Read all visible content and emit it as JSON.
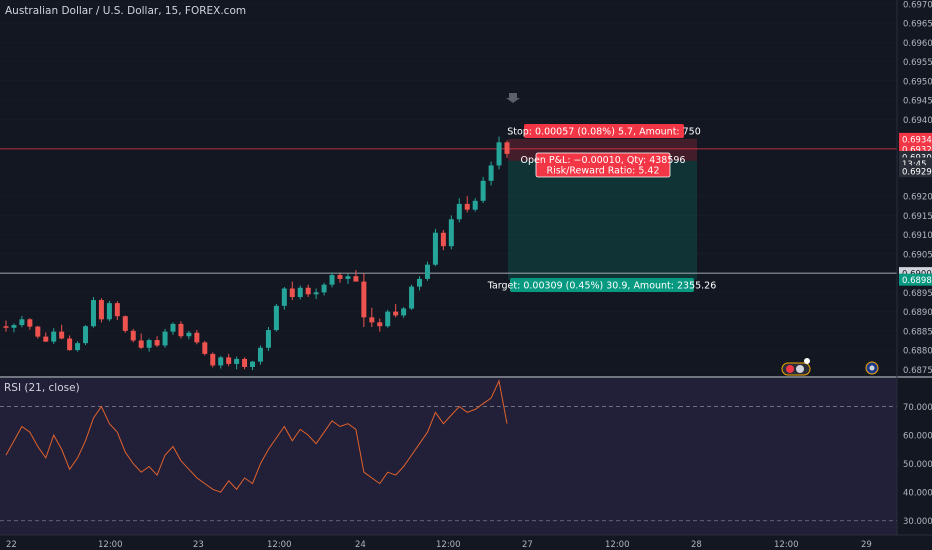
{
  "symbol_title": "Australian Dollar / U.S. Dollar, 15, FOREX.com",
  "colors": {
    "background": "#131722",
    "up_candle": "#26a69a",
    "down_candle": "#ef5350",
    "axis_text": "#b2b5be",
    "grid": "#2a2e39",
    "stop_zone": "rgba(242,54,69,0.22)",
    "target_zone": "rgba(8,153,129,0.22)",
    "stop_label": "#f23645",
    "target_label": "#089981",
    "rsi_bg": "rgba(126,87,194,0.14)",
    "rsi_line": "#e0622c"
  },
  "chart_data": [
    {
      "type": "candlestick",
      "title": "Australian Dollar / U.S. Dollar, 15, FOREX.com",
      "ylim": [
        0.6873,
        0.6971
      ],
      "y_ticks": [
        "0.69700",
        "0.69650",
        "0.69600",
        "0.69550",
        "0.69500",
        "0.69450",
        "0.69400",
        "0.69200",
        "0.69150",
        "0.69100",
        "0.69050",
        "0.68950",
        "0.68900",
        "0.68850",
        "0.68800",
        "0.68750"
      ],
      "x_ticks": [
        "22",
        "12:00",
        "23",
        "12:00",
        "24",
        "12:00",
        "27",
        "12:00",
        "28",
        "12:00",
        "29"
      ],
      "price_tags": [
        {
          "label": "0.69349",
          "value": 0.69349,
          "color": "#f23645"
        },
        {
          "label": "0.69323",
          "value": 0.69323,
          "color": "#f23645"
        },
        {
          "label": "0.69302",
          "value": 0.69302,
          "color": "#2a2e39"
        },
        {
          "label": "13:45",
          "value": 0.69285,
          "color": "#2a2e39"
        },
        {
          "label": "0.69292",
          "value": 0.69265,
          "color": "#2a2e39"
        },
        {
          "label": "0.69000",
          "value": 0.69,
          "color": "#d1d4dc"
        },
        {
          "label": "0.68983",
          "value": 0.68983,
          "color": "#089981"
        }
      ],
      "candles": [
        [
          0.68862,
          0.68877,
          0.68848,
          0.68858
        ],
        [
          0.68858,
          0.68869,
          0.68846,
          0.68865
        ],
        [
          0.68865,
          0.68889,
          0.68859,
          0.6888
        ],
        [
          0.6888,
          0.68883,
          0.68853,
          0.68861
        ],
        [
          0.68861,
          0.68863,
          0.6883,
          0.68835
        ],
        [
          0.68835,
          0.68846,
          0.68821,
          0.68822
        ],
        [
          0.68822,
          0.68857,
          0.68816,
          0.68848
        ],
        [
          0.68848,
          0.68866,
          0.68828,
          0.6883
        ],
        [
          0.6883,
          0.68838,
          0.68798,
          0.688
        ],
        [
          0.688,
          0.68823,
          0.68796,
          0.68818
        ],
        [
          0.68818,
          0.68865,
          0.68813,
          0.68862
        ],
        [
          0.68862,
          0.68938,
          0.68858,
          0.6893
        ],
        [
          0.6893,
          0.68935,
          0.68872,
          0.6888
        ],
        [
          0.6888,
          0.68928,
          0.68875,
          0.68922
        ],
        [
          0.68922,
          0.68927,
          0.68878,
          0.68888
        ],
        [
          0.68888,
          0.6889,
          0.68845,
          0.6885
        ],
        [
          0.6885,
          0.68855,
          0.6882,
          0.68825
        ],
        [
          0.68825,
          0.68843,
          0.68803,
          0.68806
        ],
        [
          0.68806,
          0.6883,
          0.68796,
          0.68826
        ],
        [
          0.68826,
          0.68836,
          0.68808,
          0.68812
        ],
        [
          0.68812,
          0.68855,
          0.68806,
          0.68848
        ],
        [
          0.68848,
          0.68872,
          0.6884,
          0.68868
        ],
        [
          0.68868,
          0.68875,
          0.6883,
          0.68836
        ],
        [
          0.68836,
          0.6885,
          0.68828,
          0.68845
        ],
        [
          0.68845,
          0.68852,
          0.68815,
          0.6882
        ],
        [
          0.6882,
          0.68824,
          0.68786,
          0.6879
        ],
        [
          0.6879,
          0.68794,
          0.68755,
          0.6876
        ],
        [
          0.6876,
          0.68785,
          0.68752,
          0.68781
        ],
        [
          0.68781,
          0.6879,
          0.68758,
          0.68764
        ],
        [
          0.68764,
          0.68783,
          0.6875,
          0.68777
        ],
        [
          0.68777,
          0.68781,
          0.6875,
          0.68756
        ],
        [
          0.68756,
          0.68772,
          0.68748,
          0.6877
        ],
        [
          0.6877,
          0.68812,
          0.68762,
          0.68806
        ],
        [
          0.68806,
          0.6886,
          0.68798,
          0.68852
        ],
        [
          0.68852,
          0.6892,
          0.68848,
          0.68915
        ],
        [
          0.68915,
          0.68964,
          0.68905,
          0.6896
        ],
        [
          0.6896,
          0.68978,
          0.6893,
          0.68938
        ],
        [
          0.68938,
          0.68968,
          0.68932,
          0.68962
        ],
        [
          0.68962,
          0.6897,
          0.68938,
          0.68945
        ],
        [
          0.68945,
          0.6896,
          0.68933,
          0.6895
        ],
        [
          0.6895,
          0.68975,
          0.68942,
          0.6897
        ],
        [
          0.6897,
          0.69002,
          0.68963,
          0.68995
        ],
        [
          0.68995,
          0.68999,
          0.68975,
          0.68985
        ],
        [
          0.68985,
          0.68998,
          0.68972,
          0.68992
        ],
        [
          0.68992,
          0.69008,
          0.68986,
          0.68978
        ],
        [
          0.68978,
          0.69,
          0.6886,
          0.68885
        ],
        [
          0.68885,
          0.6891,
          0.6886,
          0.68872
        ],
        [
          0.68872,
          0.68882,
          0.68848,
          0.68862
        ],
        [
          0.68862,
          0.68905,
          0.68858,
          0.689
        ],
        [
          0.689,
          0.6892,
          0.68885,
          0.6889
        ],
        [
          0.6889,
          0.68912,
          0.68884,
          0.68908
        ],
        [
          0.68908,
          0.6897,
          0.68904,
          0.68965
        ],
        [
          0.68965,
          0.68992,
          0.68955,
          0.68985
        ],
        [
          0.68985,
          0.6903,
          0.6898,
          0.69022
        ],
        [
          0.69022,
          0.69115,
          0.69018,
          0.69105
        ],
        [
          0.69105,
          0.69112,
          0.6906,
          0.6907
        ],
        [
          0.6907,
          0.6915,
          0.69062,
          0.6914
        ],
        [
          0.6914,
          0.69195,
          0.69132,
          0.6918
        ],
        [
          0.6918,
          0.692,
          0.69158,
          0.69165
        ],
        [
          0.69165,
          0.69195,
          0.6916,
          0.69188
        ],
        [
          0.69188,
          0.6925,
          0.69182,
          0.6924
        ],
        [
          0.6924,
          0.6929,
          0.69228,
          0.6928
        ],
        [
          0.6928,
          0.69355,
          0.6927,
          0.6934
        ],
        [
          0.6934,
          0.69345,
          0.693,
          0.6931
        ]
      ]
    },
    {
      "type": "line",
      "title": "RSI (21, close)",
      "ylim": [
        25,
        80
      ],
      "y_ticks": [
        "70.0000",
        "60.0000",
        "50.0000",
        "40.0000",
        "30.0000"
      ],
      "bands": [
        70,
        30
      ],
      "values": [
        53,
        58,
        63,
        61,
        56,
        52,
        60,
        55,
        48,
        52,
        58,
        66,
        70,
        64,
        61,
        54,
        50,
        47,
        49,
        46,
        53,
        56,
        51,
        48,
        45,
        43,
        41,
        40,
        44,
        41,
        45,
        43,
        50,
        55,
        59,
        63,
        58,
        62,
        60,
        57,
        61,
        65,
        63,
        64,
        62,
        47,
        45,
        43,
        47,
        46,
        49,
        53,
        57,
        61,
        68,
        64,
        67,
        70,
        68,
        69,
        71,
        73,
        79,
        64
      ]
    }
  ],
  "trade_labels": {
    "stop": "Stop: 0.00057 (0.08%) 5.7, Amount: 750",
    "open_pnl": "Open P&L: −0.00010, Qty: 438596",
    "rr": "Risk/Reward Ratio: 5.42",
    "target": "Target: 0.00309 (0.45%) 30.9, Amount: 2355.26"
  },
  "trade_levels": {
    "entry": 0.69292,
    "stop": 0.69349,
    "target": 0.68983
  },
  "rsi_title": "RSI (21, close)"
}
